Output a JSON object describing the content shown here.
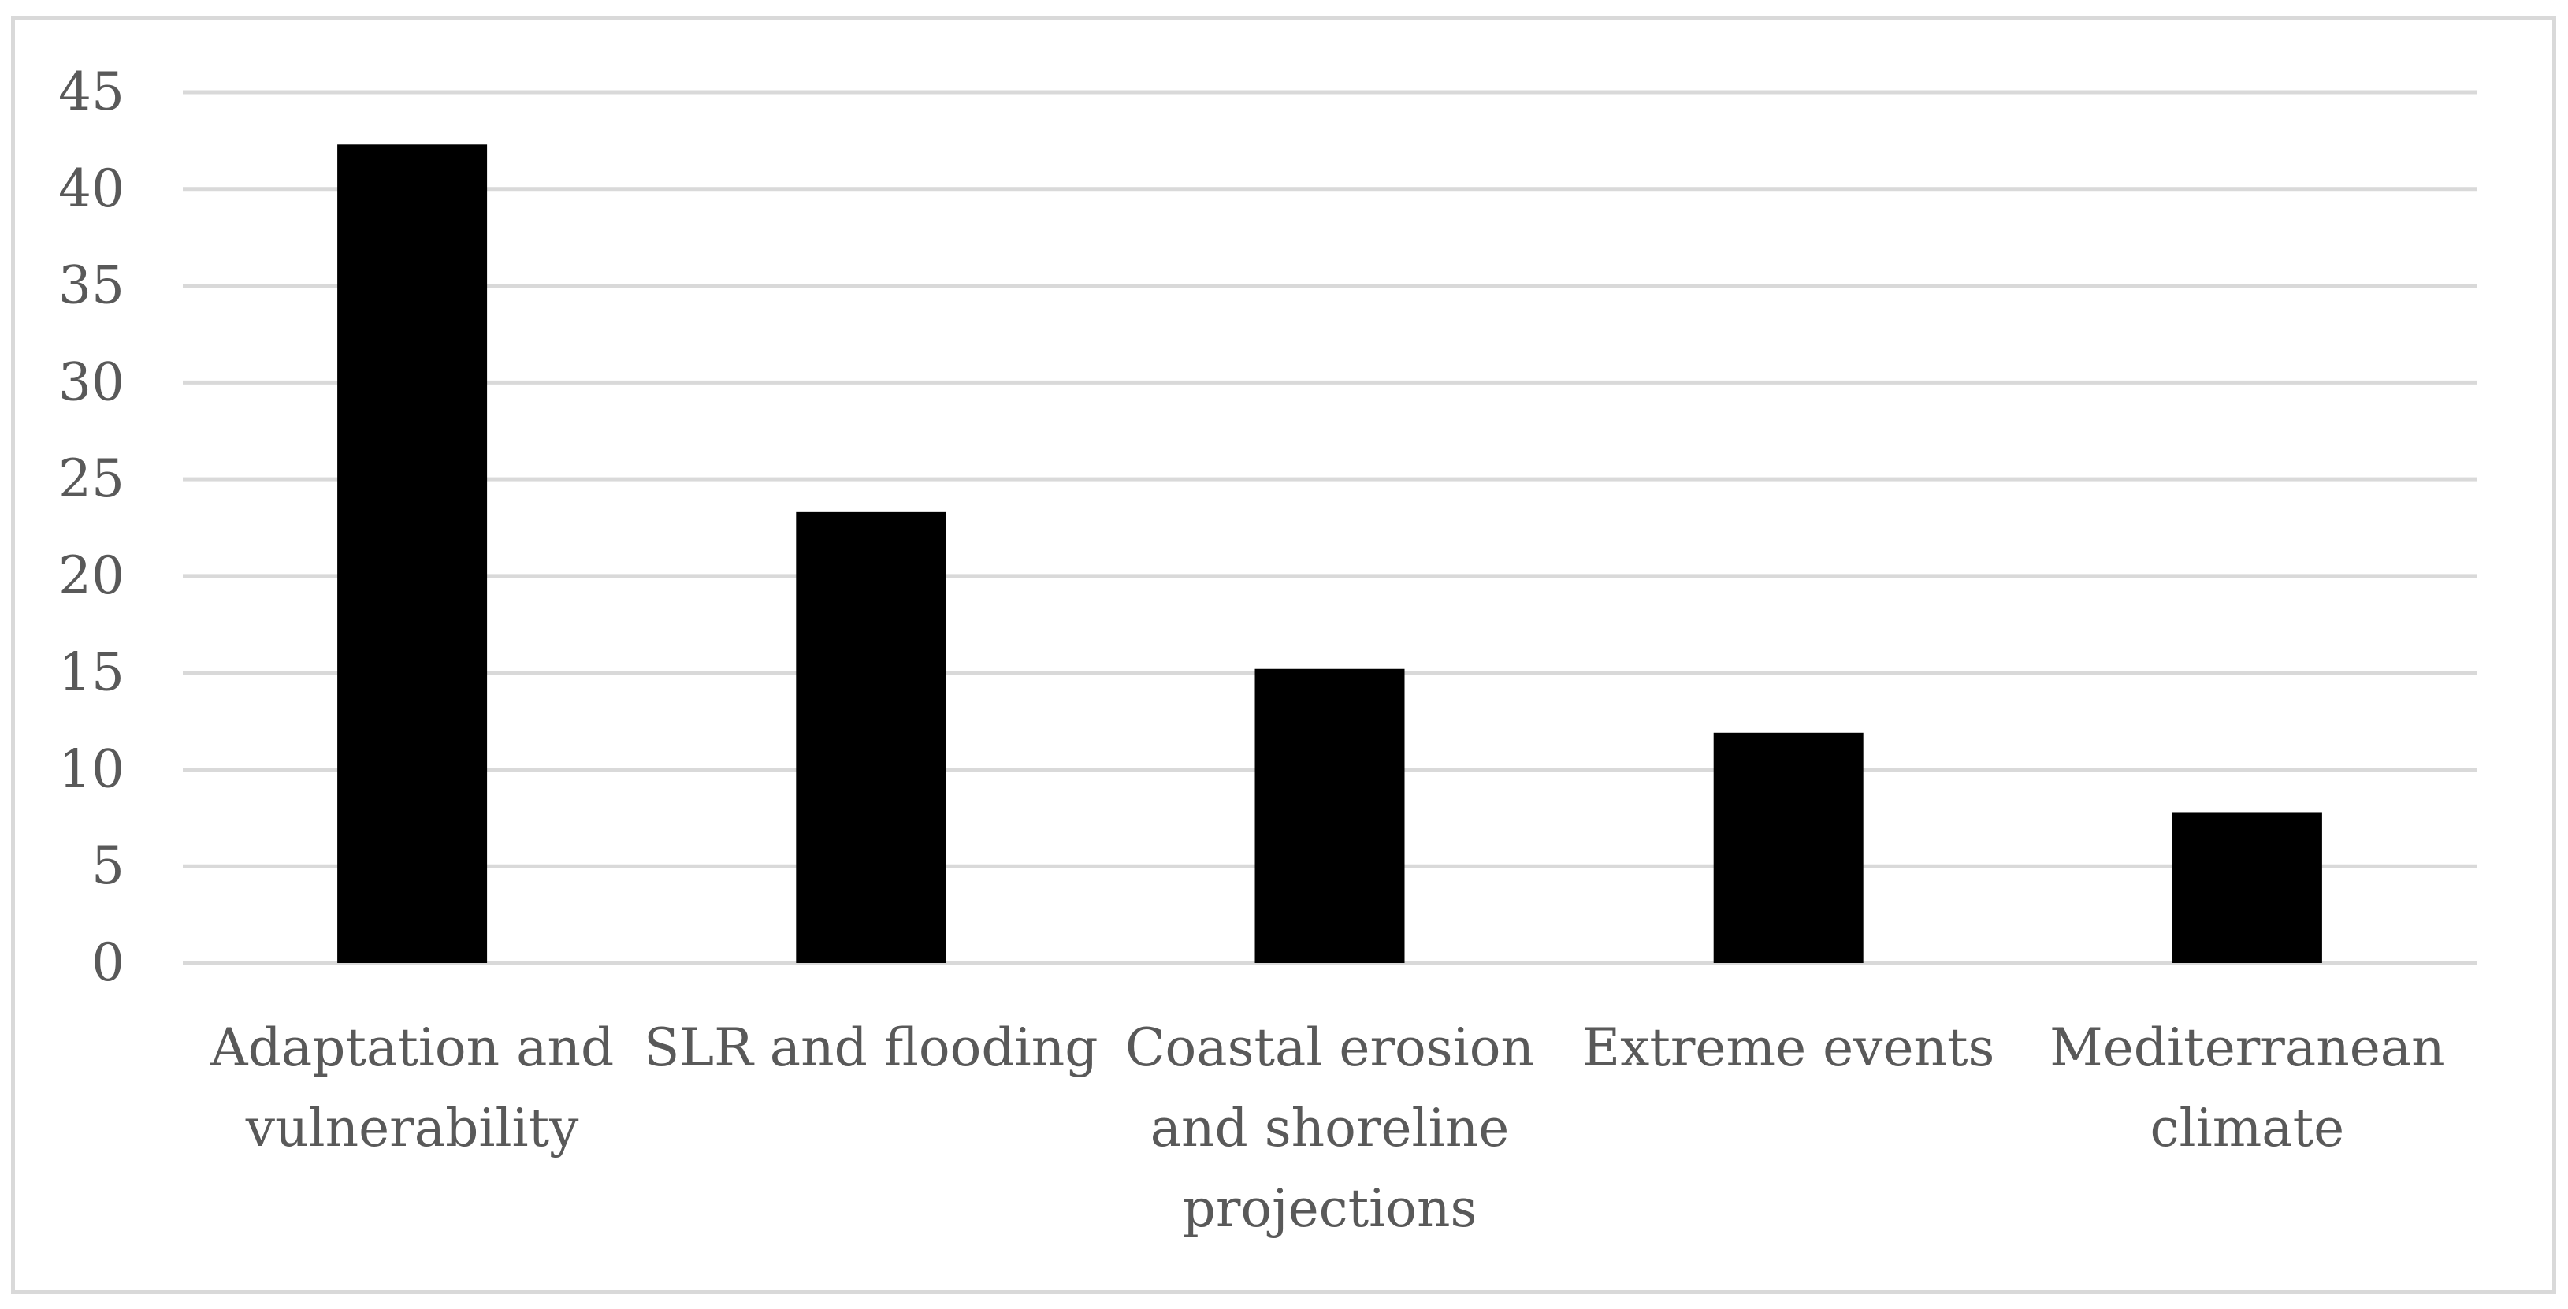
{
  "chart_data": {
    "type": "bar",
    "title": "",
    "xlabel": "",
    "ylabel": "",
    "categories": [
      [
        "Adaptation and",
        "vulnerability"
      ],
      [
        "SLR and flooding"
      ],
      [
        "Coastal erosion",
        "and shoreline",
        "projections"
      ],
      [
        "Extreme events"
      ],
      [
        "Mediterranean",
        "climate"
      ]
    ],
    "values": [
      42.3,
      23.3,
      15.2,
      11.9,
      7.8
    ],
    "ylim": [
      0,
      45
    ],
    "yticks": [
      "0",
      "5",
      "10",
      "15",
      "20",
      "25",
      "30",
      "35",
      "40",
      "45"
    ],
    "grid": true,
    "legend": "none",
    "colors": {
      "bar": "#000000",
      "grid": "#d9d9d9",
      "text": "#595959",
      "frame": "#d9d9d9"
    }
  }
}
